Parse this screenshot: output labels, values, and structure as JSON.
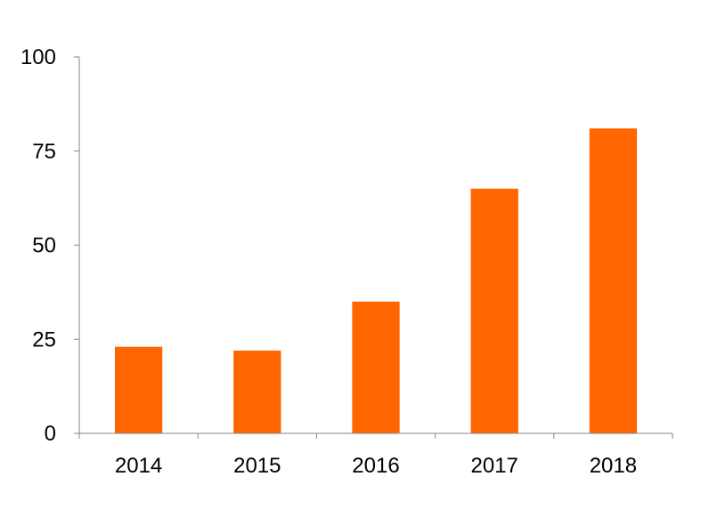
{
  "chart_data": {
    "type": "bar",
    "categories": [
      "2014",
      "2015",
      "2016",
      "2017",
      "2018"
    ],
    "values": [
      23,
      22,
      35,
      65,
      81
    ],
    "ylim": [
      0,
      100
    ],
    "yticks": [
      0,
      25,
      50,
      75,
      100
    ],
    "title": "",
    "xlabel": "",
    "ylabel": "",
    "grid": false,
    "legend": false,
    "bar_color": "#FF6600",
    "axis_color": "#868686"
  }
}
